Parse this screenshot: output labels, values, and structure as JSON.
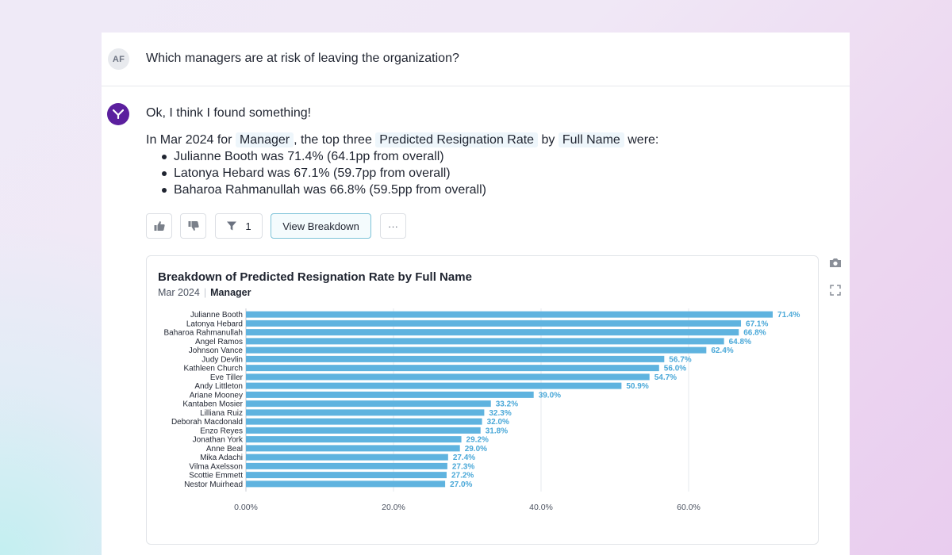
{
  "conversation": {
    "user_initials": "AF",
    "question": "Which managers are at risk of leaving the organization?",
    "answer": {
      "intro": "Ok, I think I found something!",
      "summary_prefix": "In Mar 2024 for",
      "chip_dimension": "Manager",
      "summary_mid1": ", the top three",
      "chip_metric": "Predicted Resignation Rate",
      "summary_mid2": "by",
      "chip_breakdown": "Full Name",
      "summary_suffix": "were:",
      "bullets": [
        "Julianne Booth was 71.4% (64.1pp from overall)",
        "Latonya Hebard was 67.1% (59.7pp from overall)",
        "Baharoa Rahmanullah was 66.8% (59.5pp from overall)"
      ]
    }
  },
  "actions": {
    "filter_count": "1",
    "view_breakdown_label": "View Breakdown",
    "more_label": "···"
  },
  "colors": {
    "bar": "#5fb3df",
    "label": "#4aa8d8",
    "bot_avatar": "#5b1f9e"
  },
  "chart_data": {
    "type": "bar",
    "orientation": "horizontal",
    "title": "Breakdown of Predicted Resignation Rate by Full Name",
    "subtitle_period": "Mar 2024",
    "subtitle_dimension": "Manager",
    "categories": [
      "Julianne Booth",
      "Latonya Hebard",
      "Baharoa Rahmanullah",
      "Angel Ramos",
      "Johnson Vance",
      "Judy Devlin",
      "Kathleen Church",
      "Eve Tiller",
      "Andy Littleton",
      "Ariane Mooney",
      "Kantaben Mosier",
      "Lilliana Ruiz",
      "Deborah Macdonald",
      "Enzo Reyes",
      "Jonathan York",
      "Anne Beal",
      "Mika Adachi",
      "Vilma Axelsson",
      "Scottie Emmett",
      "Nestor Muirhead"
    ],
    "values": [
      71.4,
      67.1,
      66.8,
      64.8,
      62.4,
      56.7,
      56.0,
      54.7,
      50.9,
      39.0,
      33.2,
      32.3,
      32.0,
      31.8,
      29.2,
      29.0,
      27.4,
      27.3,
      27.2,
      27.0
    ],
    "value_labels": [
      "71.4%",
      "67.1%",
      "66.8%",
      "64.8%",
      "62.4%",
      "56.7%",
      "56.0%",
      "54.7%",
      "50.9%",
      "39.0%",
      "33.2%",
      "32.3%",
      "32.0%",
      "31.8%",
      "29.2%",
      "29.0%",
      "27.4%",
      "27.3%",
      "27.2%",
      "27.0%"
    ],
    "x_ticks": [
      0,
      20,
      40,
      60
    ],
    "x_tick_labels": [
      "0.00%",
      "20.0%",
      "40.0%",
      "60.0%"
    ],
    "xlim": [
      0,
      75
    ],
    "grid": true
  }
}
